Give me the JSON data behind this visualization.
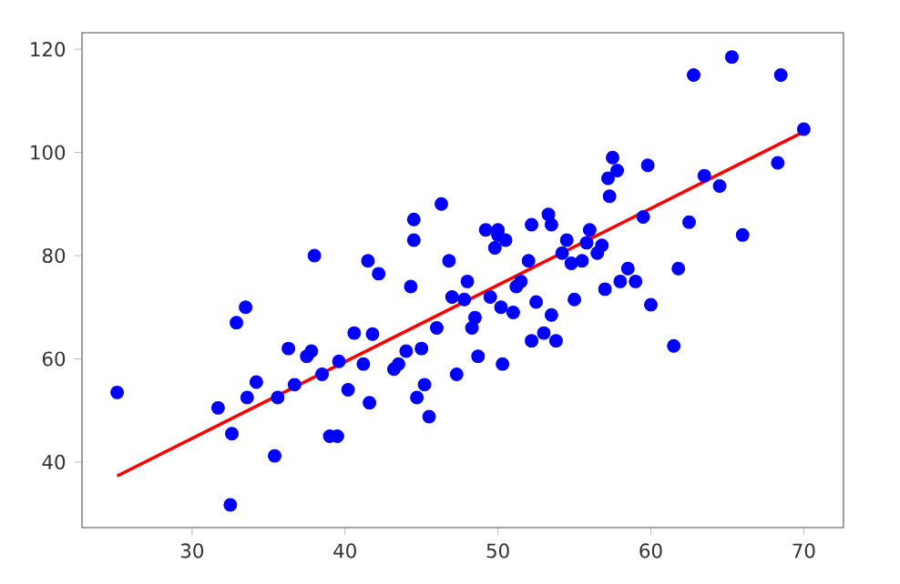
{
  "chart_data": {
    "type": "scatter",
    "marker": "circle",
    "grid": false,
    "xlim": [
      22.8,
      72.6
    ],
    "ylim": [
      27.3,
      123.2
    ],
    "xticks": [
      30,
      40,
      50,
      60,
      70
    ],
    "yticks": [
      40,
      60,
      80,
      100,
      120
    ],
    "series": [
      {
        "color": "#0000ff",
        "x": [
          25.1,
          31.7,
          32.5,
          32.6,
          32.9,
          33.5,
          33.6,
          34.2,
          35.4,
          35.6,
          36.3,
          36.7,
          37.5,
          37.8,
          38.0,
          38.5,
          39.0,
          39.5,
          39.6,
          40.2,
          40.6,
          41.2,
          41.5,
          41.6,
          41.8,
          42.2,
          43.2,
          43.5,
          44.0,
          44.3,
          44.5,
          44.5,
          44.7,
          45.0,
          45.2,
          45.5,
          46.0,
          46.3,
          46.8,
          47.0,
          47.3,
          47.8,
          48.0,
          48.3,
          48.5,
          48.7,
          49.2,
          49.5,
          49.8,
          50.0,
          50.0,
          50.2,
          50.5,
          50.3,
          51.0,
          51.2,
          51.5,
          52.0,
          52.2,
          52.2,
          52.5,
          53.0,
          53.3,
          53.5,
          53.5,
          53.8,
          54.2,
          54.5,
          54.8,
          55.0,
          55.5,
          55.8,
          56.0,
          56.5,
          56.8,
          57.0,
          57.2,
          57.3,
          57.5,
          57.8,
          58.0,
          58.5,
          59.0,
          59.5,
          59.8,
          60.0,
          61.5,
          61.8,
          62.5,
          62.8,
          63.5,
          64.5,
          65.3,
          66.0,
          68.3,
          68.5,
          70.0
        ],
        "values": [
          53.5,
          50.5,
          31.7,
          45.5,
          67,
          70,
          52.5,
          55.5,
          41.2,
          52.5,
          62,
          55,
          60.5,
          61.5,
          80,
          57,
          45,
          45,
          59.5,
          54,
          65,
          59,
          79,
          51.5,
          64.8,
          76.5,
          58,
          59,
          61.5,
          74,
          83,
          87,
          52.5,
          62,
          55,
          48.8,
          66,
          90,
          79,
          72,
          57,
          71.5,
          75,
          66,
          68,
          60.5,
          85,
          72,
          81.5,
          84,
          85,
          70,
          83,
          59,
          69,
          74,
          75,
          79,
          63.5,
          86,
          71,
          65,
          88,
          86,
          68.5,
          63.5,
          80.5,
          83,
          78.5,
          71.5,
          79,
          82.5,
          85,
          80.5,
          82,
          73.5,
          95,
          91.5,
          99,
          96.5,
          75,
          77.5,
          75,
          87.5,
          97.5,
          70.5,
          62.5,
          77.5,
          86.5,
          115,
          95.5,
          93.5,
          118.5,
          84,
          98,
          115,
          104.5
        ]
      },
      {
        "type": "line",
        "marker": "none",
        "color": "#ff0000",
        "x": [
          25.1,
          70.0
        ],
        "values": [
          37.3,
          104.0
        ]
      }
    ]
  }
}
